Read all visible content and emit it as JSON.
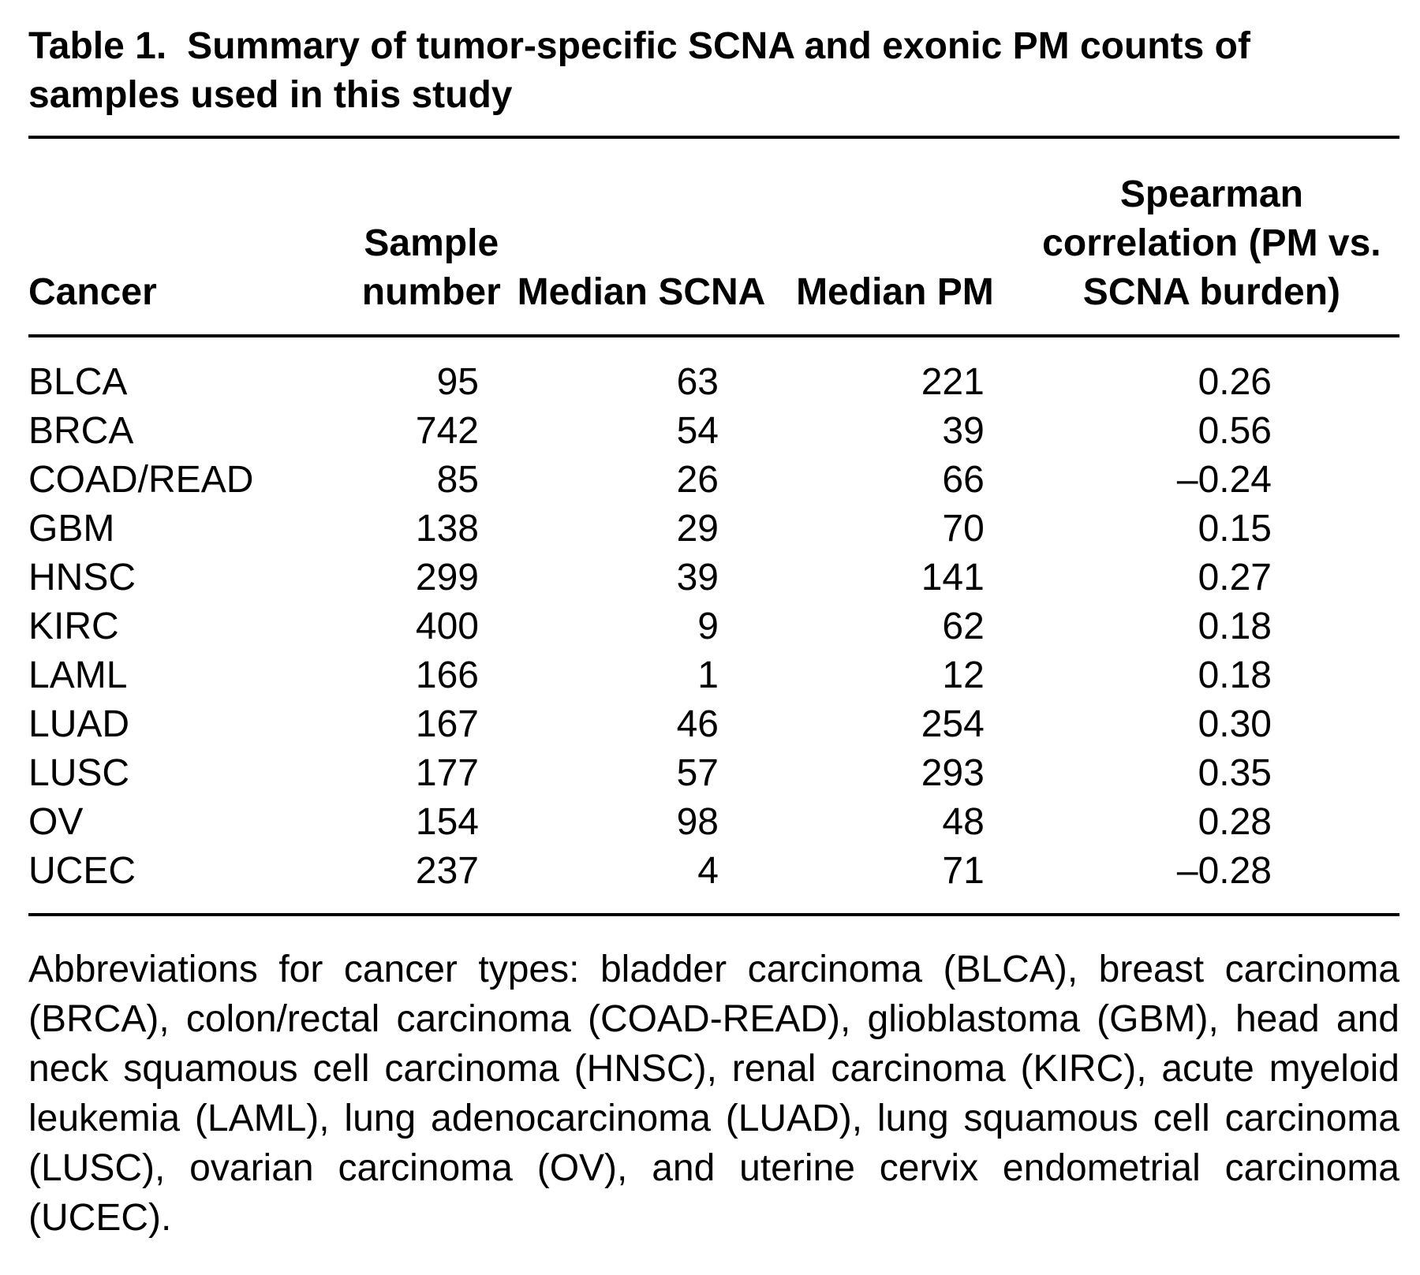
{
  "caption": {
    "label": "Table 1.",
    "text": "Summary of tumor-specific SCNA and exonic PM counts of samples used in this study"
  },
  "table": {
    "headers": [
      "Cancer",
      "Sample number",
      "Median SCNA",
      "Median PM",
      "Spearman correlation (PM vs. SCNA burden)"
    ],
    "rows": [
      {
        "cancer": "BLCA",
        "sample_number": "95",
        "median_scna": "63",
        "median_pm": "221",
        "spearman": "0.26"
      },
      {
        "cancer": "BRCA",
        "sample_number": "742",
        "median_scna": "54",
        "median_pm": "39",
        "spearman": "0.56"
      },
      {
        "cancer": "COAD/READ",
        "sample_number": "85",
        "median_scna": "26",
        "median_pm": "66",
        "spearman": "–0.24"
      },
      {
        "cancer": "GBM",
        "sample_number": "138",
        "median_scna": "29",
        "median_pm": "70",
        "spearman": "0.15"
      },
      {
        "cancer": "HNSC",
        "sample_number": "299",
        "median_scna": "39",
        "median_pm": "141",
        "spearman": "0.27"
      },
      {
        "cancer": "KIRC",
        "sample_number": "400",
        "median_scna": "9",
        "median_pm": "62",
        "spearman": "0.18"
      },
      {
        "cancer": "LAML",
        "sample_number": "166",
        "median_scna": "1",
        "median_pm": "12",
        "spearman": "0.18"
      },
      {
        "cancer": "LUAD",
        "sample_number": "167",
        "median_scna": "46",
        "median_pm": "254",
        "spearman": "0.30"
      },
      {
        "cancer": "LUSC",
        "sample_number": "177",
        "median_scna": "57",
        "median_pm": "293",
        "spearman": "0.35"
      },
      {
        "cancer": "OV",
        "sample_number": "154",
        "median_scna": "98",
        "median_pm": "48",
        "spearman": "0.28"
      },
      {
        "cancer": "UCEC",
        "sample_number": "237",
        "median_scna": "4",
        "median_pm": "71",
        "spearman": "–0.28"
      }
    ]
  },
  "footnote": "Abbreviations for cancer types: bladder carcinoma (BLCA), breast carcinoma (BRCA), colon/rectal carcinoma (COAD-READ), glioblastoma (GBM), head and neck squamous cell carcinoma (HNSC), renal carcinoma (KIRC), acute myeloid leukemia (LAML), lung adenocarcinoma (LUAD), lung squamous cell carcinoma (LUSC), ovarian carcinoma (OV), and uterine cervix endometrial carcinoma (UCEC)."
}
